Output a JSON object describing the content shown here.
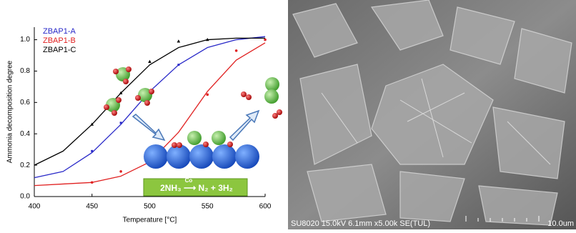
{
  "chart_data": {
    "type": "scatter",
    "xlabel": "Temperature [°C]",
    "ylabel": "Ammonia decomposition degree",
    "xlim": [
      400,
      600
    ],
    "ylim": [
      0,
      1.08
    ],
    "xticks": [
      400,
      450,
      500,
      550,
      600
    ],
    "yticks": [
      {
        "value": 0,
        "label": "0.0"
      },
      {
        "value": 0.2,
        "label": "0.2"
      },
      {
        "value": 0.4,
        "label": "0.4"
      },
      {
        "value": 0.6,
        "label": "0.6"
      },
      {
        "value": 0.8,
        "label": "0.8"
      },
      {
        "value": 1.0,
        "label": "1.0"
      }
    ],
    "fit_x": [
      400,
      425,
      450,
      475,
      500,
      525,
      550,
      575,
      600
    ],
    "series": [
      {
        "name": "ZBAP1-A",
        "color": "#2828c8",
        "marker": "square",
        "x": [
          450,
          475,
          525,
          600
        ],
        "values": [
          0.29,
          0.47,
          0.84,
          1.0
        ],
        "fit_values": [
          0.12,
          0.16,
          0.28,
          0.46,
          0.67,
          0.84,
          0.95,
          1.0,
          1.02
        ]
      },
      {
        "name": "ZBAP1-B",
        "color": "#e02020",
        "marker": "circle",
        "x": [
          450,
          475,
          550,
          575,
          600
        ],
        "values": [
          0.09,
          0.16,
          0.65,
          0.93,
          1.0
        ],
        "fit_values": [
          0.07,
          0.08,
          0.09,
          0.13,
          0.22,
          0.41,
          0.67,
          0.87,
          0.98
        ]
      },
      {
        "name": "ZBAP1-C",
        "color": "#000000",
        "marker": "triangle",
        "x": [
          450,
          475,
          500,
          525,
          550
        ],
        "values": [
          0.46,
          0.66,
          0.86,
          0.99,
          1.0
        ],
        "fit_values": [
          0.2,
          0.29,
          0.46,
          0.66,
          0.84,
          0.95,
          1.0,
          1.01,
          1.01
        ]
      }
    ],
    "equation": "2NH₃ ⟶ N₂ + 3H₂",
    "catalyst": "Co"
  },
  "image": {
    "caption": "SU8020 15.0kV 6.1mm x5.00k SE(TUL)",
    "scale_label": "10.0um"
  }
}
